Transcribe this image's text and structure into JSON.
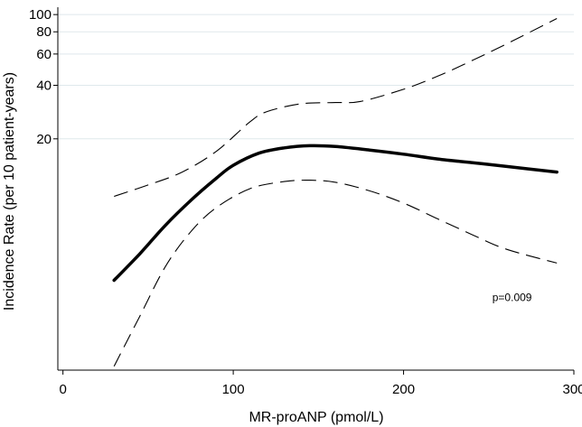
{
  "chart_data": {
    "type": "line",
    "title": "",
    "xlabel": "MR-proANP (pmol/L)",
    "ylabel": "Incidence Rate (per 10 patient-years)",
    "x_ticks": [
      0,
      100,
      200,
      300
    ],
    "y_ticks": [
      20,
      40,
      60,
      80,
      100
    ],
    "xlim": [
      -3,
      300
    ],
    "ylim": [
      1.0,
      110
    ],
    "y_scale": "log",
    "grid": "horizontal",
    "colors": {
      "line": "#000000",
      "grid": "#dfe8ec"
    },
    "annotations": [
      {
        "text": "p=0.009",
        "x": 260,
        "y": 2.6
      }
    ],
    "series": [
      {
        "style": "solid",
        "x": [
          30,
          45,
          60,
          75,
          90,
          100,
          115,
          130,
          145,
          160,
          180,
          200,
          220,
          240,
          260,
          290
        ],
        "y": [
          3.2,
          4.5,
          6.5,
          9.0,
          12.0,
          14.2,
          16.6,
          17.8,
          18.3,
          18.1,
          17.3,
          16.4,
          15.4,
          14.7,
          14.0,
          13.0
        ]
      },
      {
        "style": "dashed",
        "x": [
          30,
          50,
          70,
          90,
          110,
          120,
          140,
          160,
          175,
          200,
          220,
          240,
          260,
          290
        ],
        "y": [
          9.5,
          11.0,
          13.0,
          17.0,
          25.0,
          28.5,
          31.5,
          32.0,
          32.5,
          38.0,
          45.0,
          55.0,
          68.0,
          95.0
        ]
      },
      {
        "style": "dashed",
        "x": [
          30,
          45,
          60,
          75,
          90,
          110,
          130,
          145,
          160,
          180,
          200,
          220,
          240,
          260,
          290
        ],
        "y": [
          1.05,
          2.0,
          3.8,
          6.0,
          8.2,
          10.5,
          11.5,
          11.7,
          11.4,
          10.2,
          8.7,
          7.1,
          5.8,
          4.8,
          4.0
        ]
      }
    ]
  }
}
